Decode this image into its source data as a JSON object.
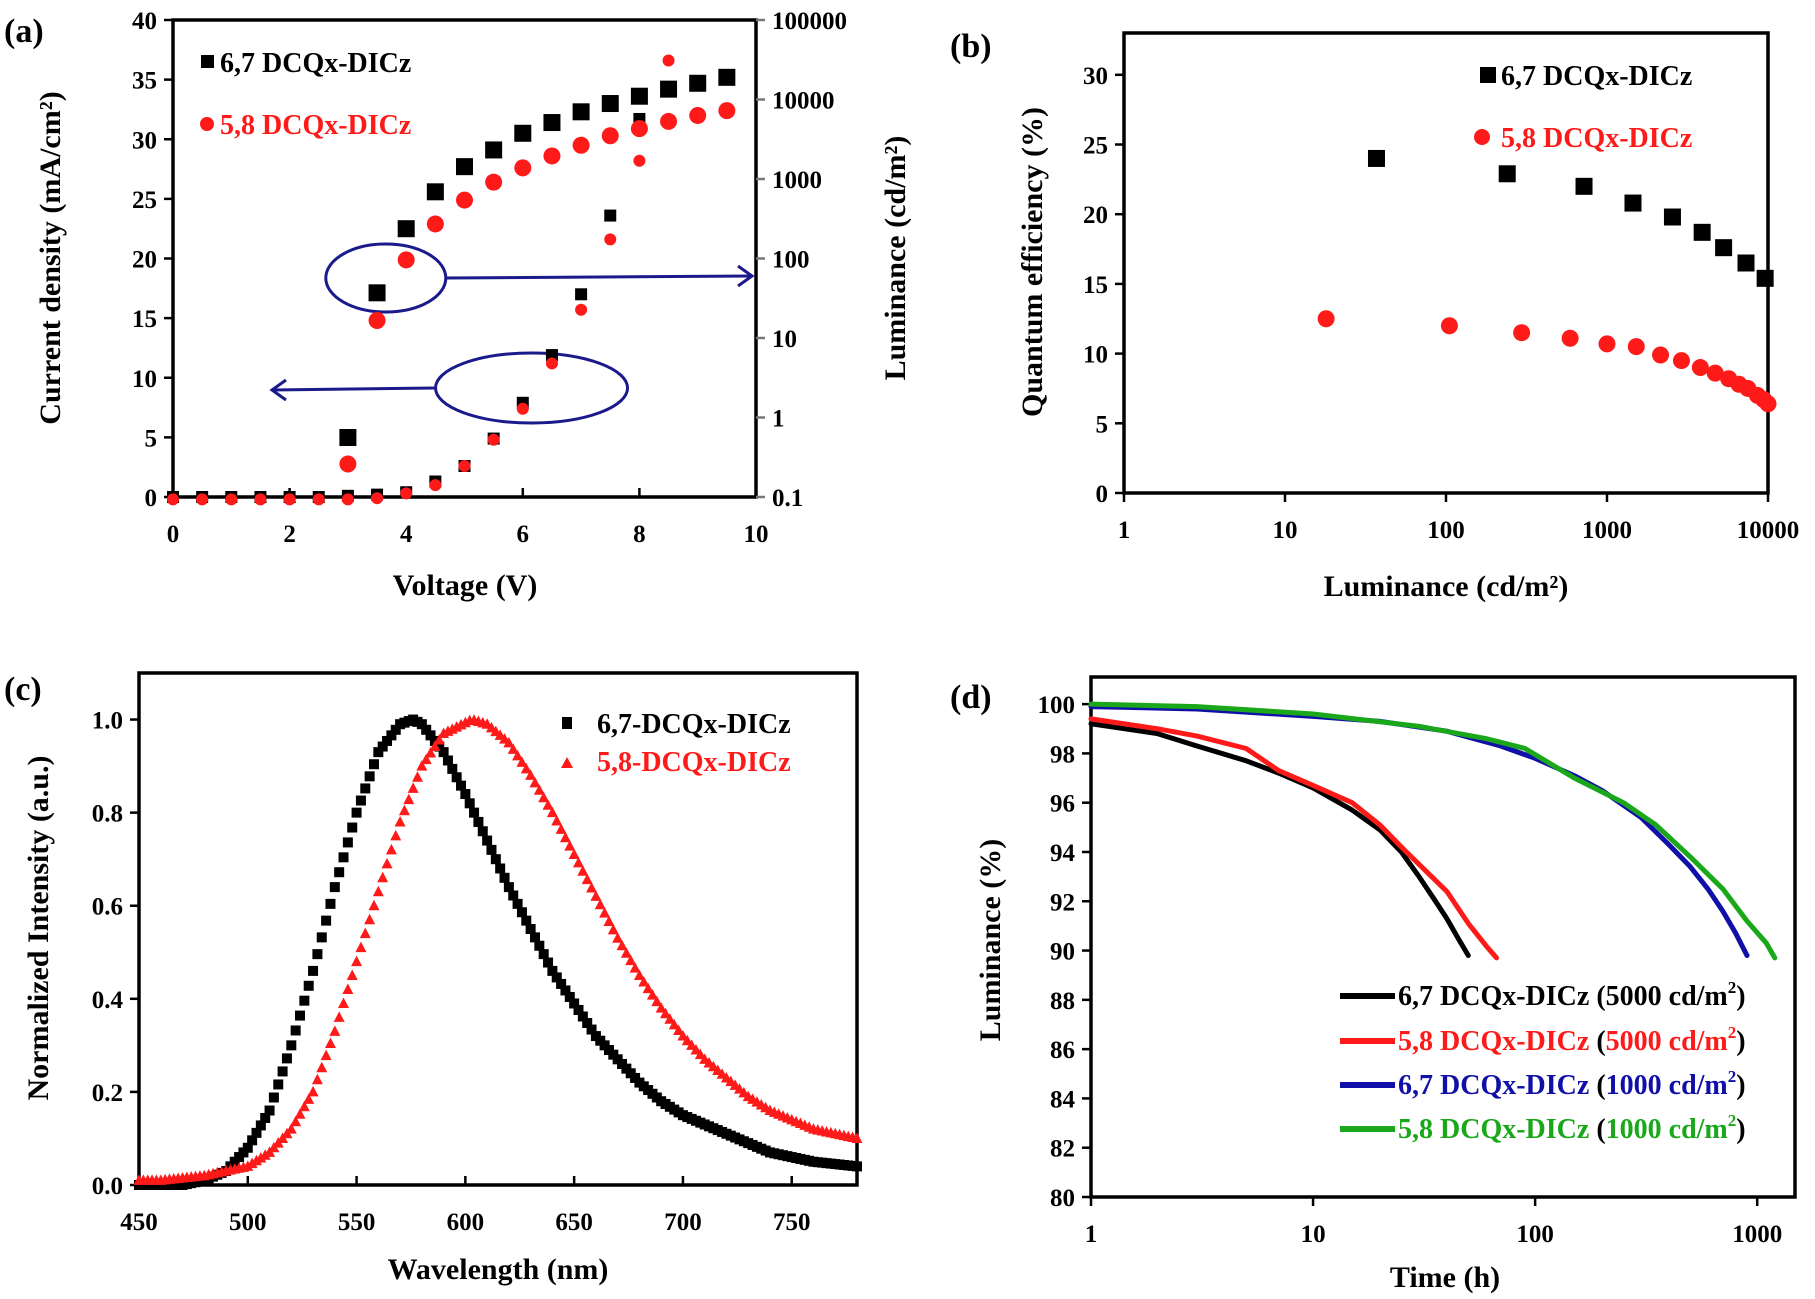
{
  "figure": {
    "colors": {
      "black": "#000000",
      "red": "#ff1a1a",
      "blue": "#1010a8",
      "green": "#1aa81a",
      "annotation": "#1a1a8c"
    }
  },
  "chart_data": [
    {
      "panel": "(a)",
      "type": "scatter",
      "title": "",
      "xlabel": "Voltage (V)",
      "ylabel": "Current density (mA/cm²)",
      "ylabel_right": "Luminance (cd/m²)",
      "xlim": [
        0,
        10
      ],
      "ylim": [
        0,
        40
      ],
      "ylim_right": [
        0.1,
        100000
      ],
      "yscale_right": "log",
      "xticks": [
        0,
        2,
        4,
        6,
        8,
        10
      ],
      "yticks": [
        0,
        5,
        10,
        15,
        20,
        25,
        30,
        35,
        40
      ],
      "yticks_right": [
        0.1,
        1,
        10,
        100,
        1000,
        10000,
        100000
      ],
      "grid": false,
      "legend": "top-left",
      "legend_entries": [
        "6,7 DCQx-DICz",
        "5,8 DCQx-DICz"
      ],
      "annotations": [
        "ellipse with arrow pointing to right axis (luminance)",
        "ellipse with arrow pointing to left axis (current density)"
      ],
      "series": [
        {
          "name": "6,7 DCQx-DICz current density",
          "axis": "left",
          "marker": "square",
          "color": "black",
          "size": "small",
          "x": [
            0,
            0.5,
            1,
            1.5,
            2,
            2.5,
            3,
            3.5,
            4,
            4.5,
            5,
            5.5,
            6,
            6.5,
            7,
            7.5,
            8
          ],
          "y": [
            0,
            0,
            0,
            0,
            0,
            0,
            0.1,
            0.2,
            0.4,
            1.3,
            2.6,
            4.9,
            7.9,
            11.9,
            17.0,
            23.6,
            31.7
          ]
        },
        {
          "name": "5,8 DCQx-DICz current density",
          "axis": "left",
          "marker": "circle",
          "color": "red",
          "size": "small",
          "x": [
            0,
            0.5,
            1,
            1.5,
            2,
            2.5,
            3,
            3.5,
            4,
            4.5,
            5,
            5.5,
            6,
            6.5,
            7,
            7.5,
            8,
            8.5
          ],
          "y": [
            -0.2,
            -0.2,
            -0.2,
            -0.2,
            -0.2,
            -0.2,
            -0.2,
            -0.1,
            0.3,
            1.0,
            2.6,
            4.8,
            7.4,
            11.2,
            15.7,
            21.6,
            28.2,
            36.6
          ]
        },
        {
          "name": "6,7 DCQx-DICz luminance",
          "axis": "right",
          "marker": "square",
          "color": "black",
          "size": "large",
          "x": [
            3,
            3.5,
            4,
            4.5,
            5,
            5.5,
            6,
            6.5,
            7,
            7.5,
            8,
            8.5,
            9,
            9.5
          ],
          "y": [
            0.56,
            37,
            237,
            690,
            1430,
            2320,
            3760,
            5130,
            7000,
            8900,
            11000,
            13500,
            16000,
            19000
          ]
        },
        {
          "name": "5,8 DCQx-DICz luminance",
          "axis": "right",
          "marker": "circle",
          "color": "red",
          "size": "large",
          "x": [
            3,
            3.5,
            4,
            4.5,
            5,
            5.5,
            6,
            6.5,
            7,
            7.5,
            8,
            8.5,
            9,
            9.5
          ],
          "y": [
            0.26,
            16.6,
            96,
            272,
            543,
            912,
            1380,
            1950,
            2660,
            3500,
            4300,
            5300,
            6300,
            7250
          ]
        }
      ]
    },
    {
      "panel": "(b)",
      "type": "scatter",
      "title": "",
      "xlabel": "Luminance (cd/m²)",
      "ylabel": "Quantum efficiency  (%)",
      "xscale": "log",
      "xlim": [
        1,
        10000
      ],
      "ylim": [
        0,
        33
      ],
      "xticks": [
        1,
        10,
        100,
        1000,
        10000
      ],
      "yticks": [
        0,
        5,
        10,
        15,
        20,
        25,
        30
      ],
      "grid": false,
      "legend": "top-right",
      "legend_entries": [
        "6,7 DCQx-DICz",
        "5,8 DCQx-DICz"
      ],
      "series": [
        {
          "name": "6,7 DCQx-DICz",
          "marker": "square",
          "color": "black",
          "x": [
            37,
            240,
            720,
            1450,
            2550,
            3900,
            5300,
            7300,
            9600
          ],
          "y": [
            24.0,
            22.9,
            22.0,
            20.8,
            19.8,
            18.7,
            17.6,
            16.5,
            15.4
          ]
        },
        {
          "name": "5,8 DCQx-DICz",
          "marker": "circle",
          "color": "red",
          "x": [
            18,
            105,
            295,
            590,
            1000,
            1520,
            2150,
            2900,
            3800,
            4700,
            5700,
            6600,
            7500,
            8600,
            9400,
            10000
          ],
          "y": [
            12.5,
            12.0,
            11.5,
            11.1,
            10.7,
            10.5,
            9.9,
            9.5,
            9.0,
            8.6,
            8.2,
            7.8,
            7.5,
            7.0,
            6.7,
            6.4
          ]
        }
      ]
    },
    {
      "panel": "(c)",
      "type": "scatter",
      "title": "",
      "xlabel": "Wavelength (nm)",
      "ylabel": "Normalized Intensity (a.u.)",
      "xlim": [
        450,
        780
      ],
      "ylim": [
        0,
        1.1
      ],
      "xticks": [
        450,
        500,
        550,
        600,
        650,
        700,
        750
      ],
      "yticks": [
        0.0,
        0.2,
        0.4,
        0.6,
        0.8,
        1.0
      ],
      "ytick_format": "0.0",
      "grid": false,
      "legend": "top-right",
      "legend_entries": [
        "6,7-DCQx-DICz",
        "5,8-DCQx-DICz"
      ],
      "series": [
        {
          "name": "6,7-DCQx-DICz",
          "marker": "square",
          "color": "black",
          "x": [
            450,
            460,
            470,
            480,
            490,
            500,
            510,
            520,
            530,
            540,
            550,
            560,
            570,
            576,
            580,
            590,
            600,
            610,
            620,
            630,
            640,
            650,
            660,
            670,
            680,
            690,
            700,
            710,
            720,
            730,
            740,
            750,
            760,
            770,
            780
          ],
          "y": [
            0.0,
            0.0,
            0.0,
            0.01,
            0.03,
            0.08,
            0.16,
            0.3,
            0.46,
            0.64,
            0.8,
            0.93,
            0.99,
            1.0,
            0.99,
            0.93,
            0.84,
            0.74,
            0.64,
            0.55,
            0.46,
            0.39,
            0.32,
            0.27,
            0.22,
            0.18,
            0.15,
            0.13,
            0.11,
            0.09,
            0.07,
            0.06,
            0.05,
            0.045,
            0.04
          ]
        },
        {
          "name": "5,8-DCQx-DICz",
          "marker": "triangle",
          "color": "red",
          "x": [
            450,
            460,
            470,
            480,
            490,
            500,
            510,
            520,
            530,
            540,
            550,
            560,
            570,
            580,
            590,
            603,
            610,
            620,
            630,
            640,
            650,
            660,
            670,
            680,
            690,
            700,
            710,
            720,
            730,
            740,
            750,
            760,
            770,
            780
          ],
          "y": [
            0.01,
            0.01,
            0.015,
            0.02,
            0.03,
            0.04,
            0.07,
            0.12,
            0.2,
            0.33,
            0.48,
            0.63,
            0.78,
            0.9,
            0.97,
            1.0,
            0.99,
            0.95,
            0.88,
            0.8,
            0.71,
            0.62,
            0.53,
            0.45,
            0.38,
            0.32,
            0.27,
            0.23,
            0.19,
            0.16,
            0.14,
            0.12,
            0.11,
            0.1
          ]
        }
      ]
    },
    {
      "panel": "(d)",
      "type": "line",
      "title": "",
      "xlabel": "Time (h)",
      "ylabel": "Luminance (%)",
      "xscale": "log",
      "xlim": [
        1,
        1480
      ],
      "ylim": [
        80,
        101.1
      ],
      "xticks": [
        1,
        10,
        100,
        1000
      ],
      "yticks": [
        80,
        82,
        84,
        86,
        88,
        90,
        92,
        94,
        96,
        98,
        100
      ],
      "grid": false,
      "legend": "bottom-right",
      "series": [
        {
          "name": "6,7 DCQx-DICz",
          "condition": "5000 cd/m2",
          "color": "black",
          "x": [
            1,
            2,
            3,
            5,
            7,
            10,
            15,
            20,
            25,
            30,
            35,
            40,
            45,
            50
          ],
          "y": [
            99.2,
            98.8,
            98.3,
            97.7,
            97.2,
            96.6,
            95.7,
            94.9,
            94.0,
            93.0,
            92.1,
            91.3,
            90.5,
            89.8
          ]
        },
        {
          "name": "5,8 DCQx-DICz",
          "condition": "5000 cd/m2",
          "color": "red",
          "x": [
            1,
            2,
            3,
            5,
            7,
            10,
            15,
            20,
            25,
            30,
            40,
            50,
            60,
            67
          ],
          "y": [
            99.4,
            99.0,
            98.7,
            98.2,
            97.3,
            96.7,
            96.0,
            95.1,
            94.2,
            93.5,
            92.4,
            91.1,
            90.2,
            89.7
          ]
        },
        {
          "name": "6,7 DCQx-DICz",
          "condition": "1000 cd/m2",
          "color": "blue",
          "x": [
            1,
            3,
            10,
            20,
            40,
            70,
            100,
            150,
            200,
            300,
            400,
            500,
            600,
            700,
            800,
            900
          ],
          "y": [
            99.9,
            99.8,
            99.5,
            99.3,
            98.9,
            98.3,
            97.8,
            97.1,
            96.5,
            95.4,
            94.3,
            93.4,
            92.5,
            91.6,
            90.7,
            89.8
          ]
        },
        {
          "name": "5,8 DCQx-DICz",
          "condition": "1000 cd/m2",
          "color": "green",
          "x": [
            1,
            3,
            10,
            30,
            60,
            90,
            150,
            250,
            350,
            500,
            700,
            900,
            1100,
            1200
          ],
          "y": [
            100.0,
            99.9,
            99.6,
            99.1,
            98.6,
            98.2,
            97.0,
            96.0,
            95.1,
            93.8,
            92.5,
            91.2,
            90.3,
            89.7
          ]
        }
      ],
      "legend_entries": [
        {
          "name": "6,7 DCQx-DICz",
          "open": " (",
          "value": "5000 cd/m",
          "sup": "2",
          "close": ")"
        },
        {
          "name": "5,8 DCQx-DICz",
          "open": " (",
          "value": "5000 cd/m",
          "sup": "2",
          "close": ")"
        },
        {
          "name": "6,7 DCQx-DICz",
          "open": " (",
          "value": "1000 cd/m",
          "sup": "2",
          "close": ")"
        },
        {
          "name": "5,8 DCQx-DICz",
          "open": " (",
          "value": "1000 cd/m",
          "sup": "2",
          "close": ")"
        }
      ]
    }
  ]
}
